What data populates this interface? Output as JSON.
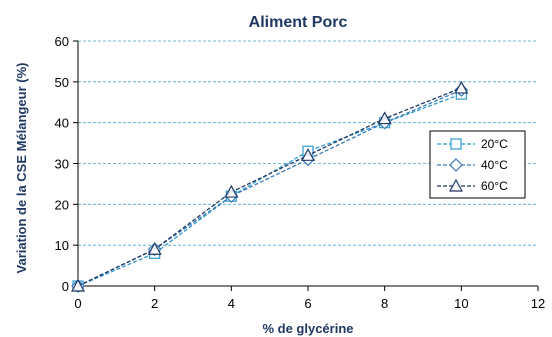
{
  "chart_data": {
    "type": "line",
    "title": "Aliment Porc",
    "xlabel": "% de glycérine",
    "ylabel": "Variation de la CSE Mélangeur (%)",
    "xlim": [
      0,
      12
    ],
    "ylim": [
      0,
      60
    ],
    "x_ticks": [
      0,
      2,
      4,
      6,
      8,
      10,
      12
    ],
    "y_ticks": [
      0,
      10,
      20,
      30,
      40,
      50,
      60
    ],
    "grid": "horizontal dashed",
    "legend_position": "right",
    "series": [
      {
        "name": "20°C",
        "marker": "square",
        "color": "#2f9bd1",
        "x": [
          0,
          2,
          4,
          6,
          8,
          10
        ],
        "y": [
          0,
          8,
          22,
          33,
          40,
          47
        ]
      },
      {
        "name": "40°C",
        "marker": "diamond",
        "color": "#3a7ab8",
        "x": [
          0,
          2,
          4,
          6,
          8,
          10
        ],
        "y": [
          0,
          9,
          22,
          31,
          40,
          48
        ]
      },
      {
        "name": "60°C",
        "marker": "triangle",
        "color": "#1f3864",
        "x": [
          0,
          2,
          4,
          6,
          8,
          10
        ],
        "y": [
          0,
          9,
          23,
          32,
          41,
          48.5
        ]
      }
    ]
  }
}
